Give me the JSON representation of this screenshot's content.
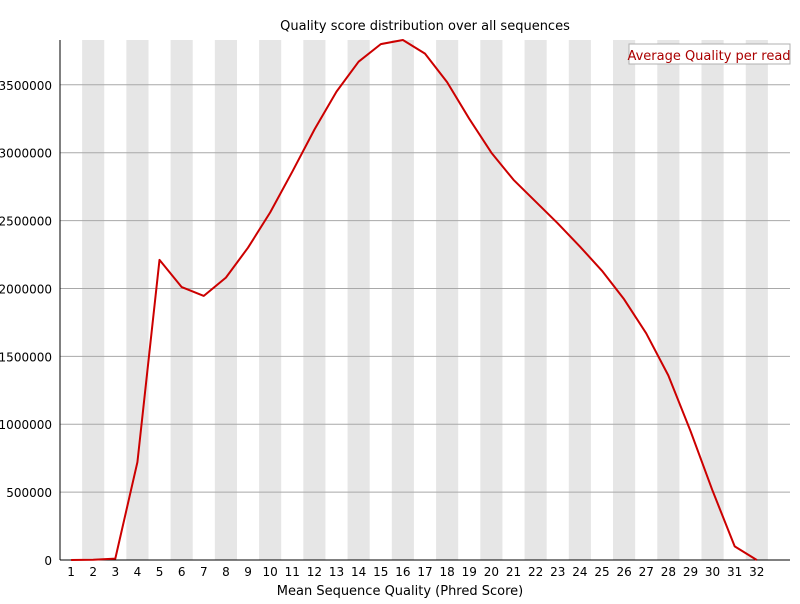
{
  "chart_data": {
    "type": "line",
    "title": "Quality score distribution over all sequences",
    "xlabel": "Mean Sequence Quality (Phred Score)",
    "ylabel": "",
    "x": [
      1,
      2,
      3,
      4,
      5,
      6,
      7,
      8,
      9,
      10,
      11,
      12,
      13,
      14,
      15,
      16,
      17,
      18,
      19,
      20,
      21,
      22,
      23,
      24,
      25,
      26,
      27,
      28,
      29,
      30,
      31,
      32
    ],
    "series": [
      {
        "name": "Average Quality per read",
        "color": "#cc0000",
        "values": [
          0,
          2000,
          10000,
          720000,
          2210000,
          2010000,
          1945000,
          2080000,
          2300000,
          2560000,
          2860000,
          3170000,
          3450000,
          3670000,
          3800000,
          3830000,
          3730000,
          3520000,
          3250000,
          3000000,
          2800000,
          2640000,
          2480000,
          2310000,
          2130000,
          1920000,
          1670000,
          1360000,
          950000,
          510000,
          100000,
          0
        ]
      }
    ],
    "ylim": [
      0,
      3830000
    ],
    "xlim": [
      0.5,
      33.5
    ],
    "yticks": [
      0,
      500000,
      1000000,
      1500000,
      2000000,
      2500000,
      3000000,
      3500000
    ],
    "xticks": [
      1,
      2,
      3,
      4,
      5,
      6,
      7,
      8,
      9,
      10,
      11,
      12,
      13,
      14,
      15,
      16,
      17,
      18,
      19,
      20,
      21,
      22,
      23,
      24,
      25,
      26,
      27,
      28,
      29,
      30,
      31,
      32
    ],
    "grid": "horizontal",
    "alternating_bands": true,
    "band_color": "#e6e6e6",
    "legend_placement": "top-right"
  }
}
